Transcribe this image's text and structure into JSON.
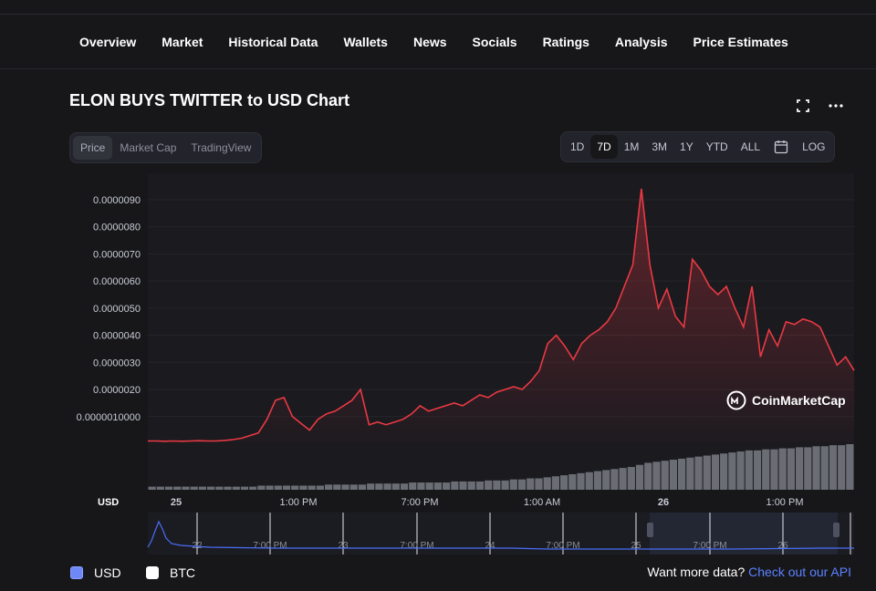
{
  "nav": {
    "tabs": [
      {
        "label": "Overview",
        "active": true
      },
      {
        "label": "Market",
        "active": false
      },
      {
        "label": "Historical Data",
        "active": false
      },
      {
        "label": "Wallets",
        "active": false
      },
      {
        "label": "News",
        "active": false
      },
      {
        "label": "Socials",
        "active": false
      },
      {
        "label": "Ratings",
        "active": false
      },
      {
        "label": "Analysis",
        "active": false
      },
      {
        "label": "Price Estimates",
        "active": false
      }
    ]
  },
  "header": {
    "title": "ELON BUYS TWITTER to USD Chart",
    "fullscreen_icon": "fullscreen-icon",
    "more_icon": "more-icon"
  },
  "chart_type_tabs": [
    {
      "label": "Price",
      "active": true
    },
    {
      "label": "Market Cap",
      "active": false
    },
    {
      "label": "TradingView",
      "active": false
    }
  ],
  "range_buttons": {
    "left": [
      {
        "label": "1D",
        "active": false
      },
      {
        "label": "7D",
        "active": true
      },
      {
        "label": "1M",
        "active": false
      },
      {
        "label": "3M",
        "active": false
      },
      {
        "label": "1Y",
        "active": false
      },
      {
        "label": "YTD",
        "active": false
      },
      {
        "label": "ALL",
        "active": false
      }
    ],
    "calendar_icon": "calendar-icon",
    "log_label": "LOG"
  },
  "watermark": "CoinMarketCap",
  "chart_data": {
    "type": "area",
    "ylabel": "USD",
    "y_ticks": [
      "0.0000090",
      "0.0000080",
      "0.0000070",
      "0.0000060",
      "0.0000050",
      "0.0000040",
      "0.0000030",
      "0.0000020",
      "0.0000010000"
    ],
    "x_ticks": [
      "25",
      "1:00 PM",
      "7:00 PM",
      "1:00 AM",
      "26",
      "1:00 PM"
    ],
    "ylim": [
      5e-08,
      9.4e-06
    ],
    "grid": true,
    "series": [
      {
        "color": "#ea3943",
        "values": [
          1e-07,
          1e-07,
          9e-08,
          1e-07,
          9e-08,
          1e-07,
          1.1e-07,
          1e-07,
          1e-07,
          1.2e-07,
          1.5e-07,
          2e-07,
          3e-07,
          4e-07,
          9e-07,
          1.6e-06,
          1.7e-06,
          1e-06,
          7.5e-07,
          5e-07,
          9e-07,
          1.1e-06,
          1.2e-06,
          1.4e-06,
          1.6e-06,
          2e-06,
          7e-07,
          8e-07,
          7e-07,
          8e-07,
          9e-07,
          1.1e-06,
          1.4e-06,
          1.2e-06,
          1.3e-06,
          1.4e-06,
          1.5e-06,
          1.4e-06,
          1.6e-06,
          1.8e-06,
          1.7e-06,
          1.9e-06,
          2e-06,
          2.1e-06,
          2e-06,
          2.3e-06,
          2.7e-06,
          3.7e-06,
          4e-06,
          3.6e-06,
          3.1e-06,
          3.7e-06,
          4e-06,
          4.2e-06,
          4.5e-06,
          5e-06,
          5.8e-06,
          6.6e-06,
          9.4e-06,
          6.6e-06,
          5e-06,
          5.7e-06,
          4.7e-06,
          4.3e-06,
          6.8e-06,
          6.4e-06,
          5.8e-06,
          5.5e-06,
          5.8e-06,
          5e-06,
          4.3e-06,
          5.8e-06,
          3.2e-06,
          4.2e-06,
          3.6e-06,
          4.5e-06,
          4.4e-06,
          4.6e-06,
          4.5e-06,
          4.3e-06,
          3.6e-06,
          2.9e-06,
          3.2e-06,
          2.7e-06
        ]
      }
    ],
    "volume": [
      3,
      3,
      3,
      3,
      3,
      3,
      3,
      3,
      3,
      3,
      3,
      3,
      3,
      4,
      4,
      4,
      4,
      4,
      4,
      4,
      4,
      5,
      5,
      5,
      5,
      5,
      6,
      6,
      6,
      6,
      6,
      7,
      7,
      7,
      7,
      7,
      8,
      8,
      8,
      8,
      9,
      9,
      9,
      10,
      10,
      11,
      11,
      12,
      13,
      14,
      15,
      16,
      17,
      18,
      19,
      20,
      21,
      22,
      24,
      26,
      27,
      28,
      29,
      30,
      31,
      32,
      33,
      34,
      35,
      36,
      37,
      38,
      38,
      39,
      39,
      40,
      40,
      41,
      41,
      42,
      42,
      43,
      43,
      44
    ]
  },
  "navigator": {
    "x_ticks": [
      "22",
      "7:00 PM",
      "23",
      "7:00 PM",
      "24",
      "7:00 PM",
      "25",
      "7:00 PM",
      "26"
    ]
  },
  "bottom": {
    "usd_label": "USD",
    "btc_label": "BTC",
    "api_prefix": "Want more data? ",
    "api_link": "Check out our API"
  }
}
